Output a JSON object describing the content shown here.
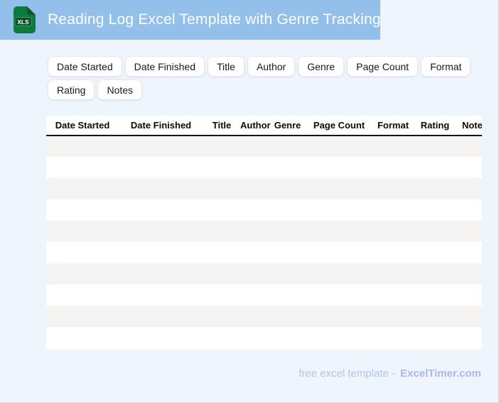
{
  "header": {
    "title": "Reading Log Excel Template with Genre Tracking",
    "file_icon_label": "XLS"
  },
  "chips": [
    "Date Started",
    "Date Finished",
    "Title",
    "Author",
    "Genre",
    "Page Count",
    "Format",
    "Rating",
    "Notes"
  ],
  "table": {
    "columns": [
      "Date Started",
      "Date Finished",
      "Title",
      "Author",
      "Genre",
      "Page Count",
      "Format",
      "Rating",
      "Notes"
    ],
    "empty_row_count": 10
  },
  "footer": {
    "text": "free excel template -",
    "brand": "ExcelTimer.com"
  },
  "colors": {
    "banner_blue": "#92c0ea",
    "page_background": "#eef5fd",
    "icon_green": "#0e7b3e",
    "icon_green_dark": "#0a5a2c",
    "row_alt_gray": "#f5f4f3",
    "row_white": "#ffffff",
    "header_rule_black": "#151515",
    "footer_text_blue": "#b5c3ed",
    "footer_brand_blue": "#a9b9ea"
  }
}
